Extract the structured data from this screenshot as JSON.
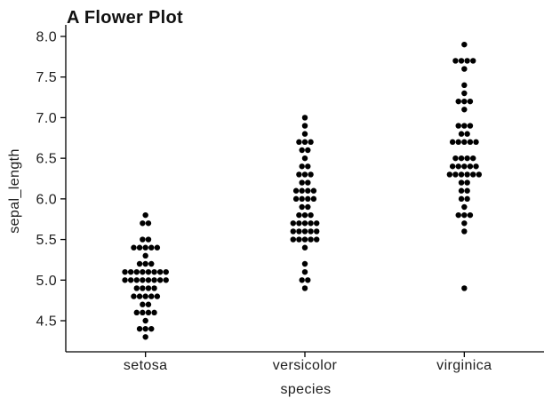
{
  "title": "A Flower Plot",
  "chart_data": {
    "type": "scatter",
    "variant": "swarm",
    "title": "A Flower Plot",
    "xlabel": "species",
    "ylabel": "sepal_length",
    "categories": [
      "setosa",
      "versicolor",
      "virginica"
    ],
    "series": [
      {
        "name": "setosa",
        "values": [
          5.1,
          4.9,
          4.7,
          4.6,
          5.0,
          5.4,
          4.6,
          5.0,
          4.4,
          4.9,
          5.4,
          4.8,
          4.8,
          4.3,
          5.8,
          5.7,
          5.4,
          5.1,
          5.7,
          5.1,
          5.4,
          5.1,
          4.6,
          5.1,
          4.8,
          5.0,
          5.0,
          5.2,
          5.2,
          4.7,
          4.8,
          5.4,
          5.2,
          5.5,
          4.9,
          5.0,
          5.5,
          4.9,
          4.4,
          5.1,
          5.0,
          4.5,
          4.4,
          5.0,
          5.1,
          4.8,
          5.1,
          4.6,
          5.3,
          5.0
        ]
      },
      {
        "name": "versicolor",
        "values": [
          7.0,
          6.4,
          6.9,
          5.5,
          6.5,
          5.7,
          6.3,
          4.9,
          6.6,
          5.2,
          5.0,
          5.9,
          6.0,
          6.1,
          5.6,
          6.7,
          5.6,
          5.8,
          6.2,
          5.6,
          5.9,
          6.1,
          6.3,
          6.1,
          6.4,
          6.6,
          6.8,
          6.7,
          6.0,
          5.7,
          5.5,
          5.5,
          5.8,
          6.0,
          5.4,
          6.0,
          6.7,
          6.3,
          5.6,
          5.5,
          5.5,
          6.1,
          5.8,
          5.0,
          5.6,
          5.7,
          5.7,
          6.2,
          5.1,
          5.7
        ]
      },
      {
        "name": "virginica",
        "values": [
          6.3,
          5.8,
          7.1,
          6.3,
          6.5,
          7.6,
          4.9,
          7.3,
          6.7,
          7.2,
          6.5,
          6.4,
          6.8,
          5.7,
          5.8,
          6.4,
          6.5,
          7.7,
          7.7,
          6.0,
          6.9,
          5.6,
          7.7,
          6.3,
          6.7,
          7.2,
          6.2,
          6.1,
          6.4,
          7.2,
          7.4,
          7.9,
          6.4,
          6.3,
          6.1,
          7.7,
          6.3,
          6.4,
          6.0,
          6.9,
          6.7,
          6.9,
          5.8,
          6.8,
          6.7,
          6.7,
          6.3,
          6.5,
          6.2,
          5.9
        ]
      }
    ],
    "y_ticks": [
      4.5,
      5.0,
      5.5,
      6.0,
      6.5,
      7.0,
      7.5,
      8.0
    ],
    "ylim": [
      4.12,
      8.12
    ],
    "grid": false,
    "legend": "none",
    "marker": {
      "shape": "circle",
      "color": "#000000"
    }
  },
  "style": {
    "background": "#ffffff",
    "text_color": "#1d1d1d",
    "title_color": "#111111",
    "axis_color": "#000000",
    "dot_color": "#000000"
  }
}
